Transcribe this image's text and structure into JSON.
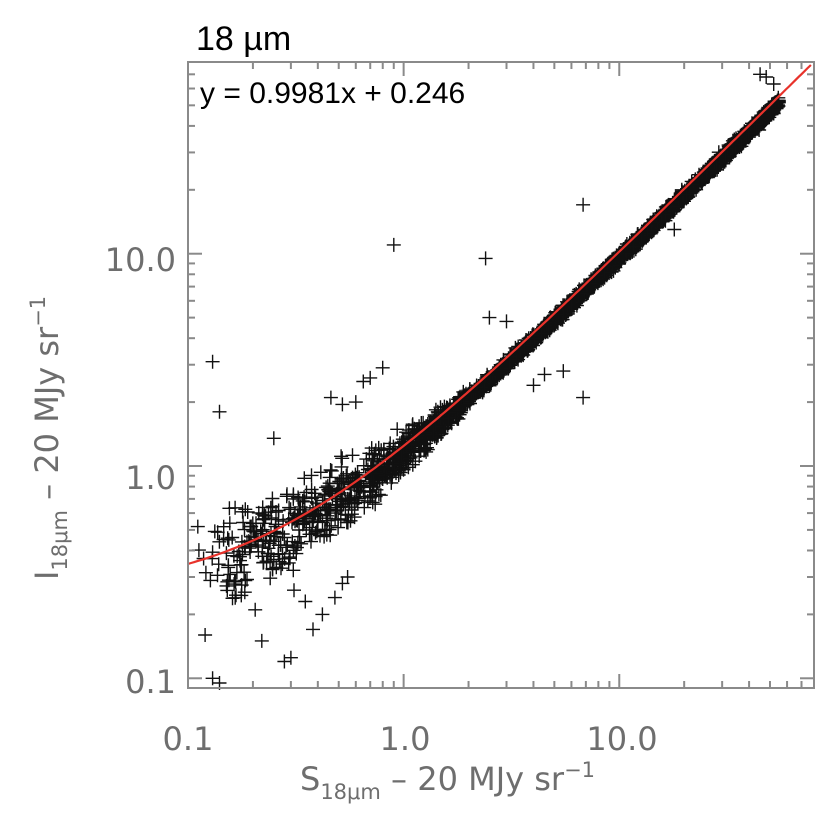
{
  "chart_data": {
    "type": "scatter",
    "title": "18 µm",
    "fit_equation": "y = 0.9981x + 0.246",
    "fit": {
      "slope": 0.9981,
      "intercept": 0.246,
      "color": "#e8322b"
    },
    "marker": "plus",
    "marker_color": "#111111",
    "axis_color": "#6e6e6e",
    "xscale": "log",
    "yscale": "log",
    "xlim": [
      0.1,
      80
    ],
    "ylim": [
      0.09,
      80
    ],
    "xticks": [
      "0.1",
      "1.0",
      "10.0"
    ],
    "yticks": [
      "0.1",
      "1.0",
      "10.0"
    ],
    "xlabel": {
      "main": "S",
      "sub": "18μm",
      "rest": " – 20 MJy sr",
      "sup": "−1"
    },
    "ylabel": {
      "main": "I",
      "sub": "18μm",
      "rest": " – 20 MJy sr",
      "sup": "−1"
    },
    "outliers": [
      [
        0.9,
        11.0
      ],
      [
        2.4,
        9.5
      ],
      [
        6.8,
        17.0
      ],
      [
        0.13,
        3.1
      ],
      [
        0.14,
        1.8
      ],
      [
        0.25,
        1.35
      ],
      [
        0.46,
        2.1
      ],
      [
        0.52,
        1.95
      ],
      [
        0.6,
        2.0
      ],
      [
        0.65,
        2.5
      ],
      [
        0.7,
        2.6
      ],
      [
        0.8,
        2.9
      ],
      [
        2.5,
        5.0
      ],
      [
        3.0,
        4.8
      ],
      [
        3.3,
        3.6
      ],
      [
        4.0,
        2.4
      ],
      [
        4.5,
        2.7
      ],
      [
        5.5,
        2.8
      ],
      [
        6.8,
        2.1
      ],
      [
        18.0,
        13.0
      ],
      [
        19.5,
        20.0
      ],
      [
        20.5,
        19.0
      ],
      [
        45.0,
        70.0
      ],
      [
        48.0,
        68.0
      ],
      [
        52.0,
        63.0
      ],
      [
        0.13,
        0.1
      ],
      [
        0.14,
        0.095
      ],
      [
        0.28,
        0.12
      ],
      [
        0.3,
        0.125
      ],
      [
        0.22,
        0.15
      ],
      [
        0.12,
        0.16
      ],
      [
        0.38,
        0.17
      ],
      [
        0.42,
        0.2
      ],
      [
        0.48,
        0.24
      ],
      [
        0.52,
        0.28
      ],
      [
        0.55,
        0.3
      ],
      [
        0.27,
        0.33
      ],
      [
        0.31,
        0.26
      ],
      [
        0.35,
        0.23
      ]
    ]
  }
}
